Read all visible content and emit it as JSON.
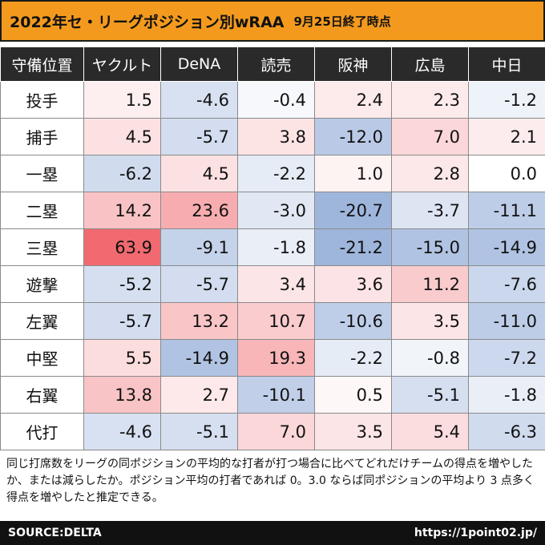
{
  "title": {
    "main": "2022年セ・リーグポジション別wRAA",
    "sub": "9月25日終了時点"
  },
  "chart_data": {
    "type": "table",
    "title": "2022年セ・リーグポジション別wRAA",
    "corner_header": "守備位置",
    "columns": [
      "ヤクルト",
      "DeNA",
      "読売",
      "阪神",
      "広島",
      "中日"
    ],
    "rows": [
      {
        "position": "投手",
        "values": [
          1.5,
          -4.6,
          -0.4,
          2.4,
          2.3,
          -1.2
        ]
      },
      {
        "position": "捕手",
        "values": [
          4.5,
          -5.7,
          3.8,
          -12.0,
          7.0,
          2.1
        ]
      },
      {
        "position": "一塁",
        "values": [
          -6.2,
          4.5,
          -2.2,
          1.0,
          2.8,
          0.0
        ]
      },
      {
        "position": "二塁",
        "values": [
          14.2,
          23.6,
          -3.0,
          -20.7,
          -3.7,
          -11.1
        ]
      },
      {
        "position": "三塁",
        "values": [
          63.9,
          -9.1,
          -1.8,
          -21.2,
          -15.0,
          -14.9
        ]
      },
      {
        "position": "遊撃",
        "values": [
          -5.2,
          -5.7,
          3.4,
          3.6,
          11.2,
          -7.6
        ]
      },
      {
        "position": "左翼",
        "values": [
          -5.7,
          13.2,
          10.7,
          -10.6,
          3.5,
          -11.0
        ]
      },
      {
        "position": "中堅",
        "values": [
          5.5,
          -14.9,
          19.3,
          -2.2,
          -0.8,
          -7.2
        ]
      },
      {
        "position": "右翼",
        "values": [
          13.8,
          2.7,
          -10.1,
          0.5,
          -5.1,
          -1.8
        ]
      },
      {
        "position": "代打",
        "values": [
          -4.6,
          -5.1,
          7.0,
          3.5,
          5.4,
          -6.3
        ]
      }
    ],
    "color_scale": {
      "positive": "#f06a70",
      "negative": "#7d9cd0",
      "neutral": "#ffffff"
    }
  },
  "note": "同じ打席数をリーグの同ポジションの平均的な打者が打つ場合に比べてどれだけチームの得点を増やしたか、または減らしたか。ポジション平均の打者であれば 0。3.0 ならば同ポジションの平均より 3 点多く得点を増やしたと推定できる。",
  "footer": {
    "source": "SOURCE:DELTA",
    "url": "https://1point02.jp/"
  }
}
